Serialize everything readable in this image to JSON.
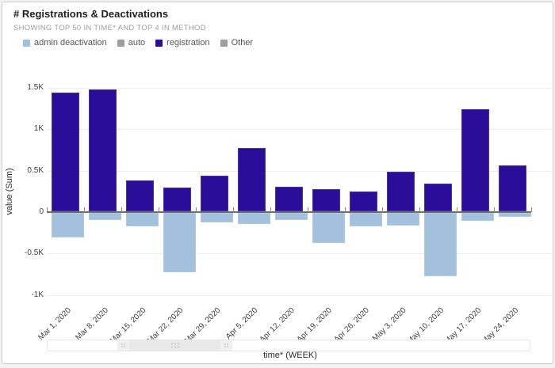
{
  "card": {
    "title": "# Registrations & Deactivations",
    "subtitle": "SHOWING TOP 50 IN TIME* AND TOP 4 IN METHOD"
  },
  "legend": {
    "items": [
      {
        "label": "admin deactivation",
        "color": "#a3c0dd"
      },
      {
        "label": "auto",
        "color": "#9e9e9e"
      },
      {
        "label": "registration",
        "color": "#2a0d99"
      },
      {
        "label": "Other",
        "color": "#9e9e9e"
      }
    ]
  },
  "chart_data": {
    "type": "bar",
    "title": "# Registrations & Deactivations",
    "xlabel": "time* (WEEK)",
    "ylabel": "value (Sum)",
    "grid": true,
    "legend_position": "top-left",
    "ylim": [
      -1000,
      1500
    ],
    "y_ticks": [
      {
        "label": "1.5K",
        "value": 1500
      },
      {
        "label": "1K",
        "value": 1000
      },
      {
        "label": "0.5K",
        "value": 500
      },
      {
        "label": "0",
        "value": 0
      },
      {
        "label": "-0.5K",
        "value": -500
      },
      {
        "label": "-1K",
        "value": -1000
      }
    ],
    "categories": [
      "Mar 1, 2020",
      "Mar 8, 2020",
      "Mar 15, 2020",
      "Mar 22, 2020",
      "Mar 29, 2020",
      "Apr 5, 2020",
      "Apr 12, 2020",
      "Apr 19, 2020",
      "Apr 26, 2020",
      "May 3, 2020",
      "May 10, 2020",
      "May 17, 2020",
      "May 24, 2020"
    ],
    "series": [
      {
        "name": "admin deactivation",
        "color": "#a3c0dd",
        "values": [
          -300,
          -90,
          -160,
          -720,
          -110,
          -130,
          -90,
          -360,
          -160,
          -150,
          -760,
          -100,
          -50
        ]
      },
      {
        "name": "auto",
        "color": "#9e9e9e",
        "values": [
          0,
          0,
          0,
          0,
          0,
          0,
          0,
          0,
          0,
          0,
          0,
          0,
          0
        ]
      },
      {
        "name": "registration",
        "color": "#2a0d99",
        "values": [
          1430,
          1470,
          370,
          290,
          430,
          760,
          300,
          270,
          240,
          480,
          330,
          1230,
          550
        ]
      },
      {
        "name": "Other",
        "color": "#9e9e9e",
        "values": [
          0,
          0,
          0,
          0,
          0,
          0,
          0,
          0,
          0,
          0,
          0,
          0,
          0
        ]
      }
    ]
  }
}
